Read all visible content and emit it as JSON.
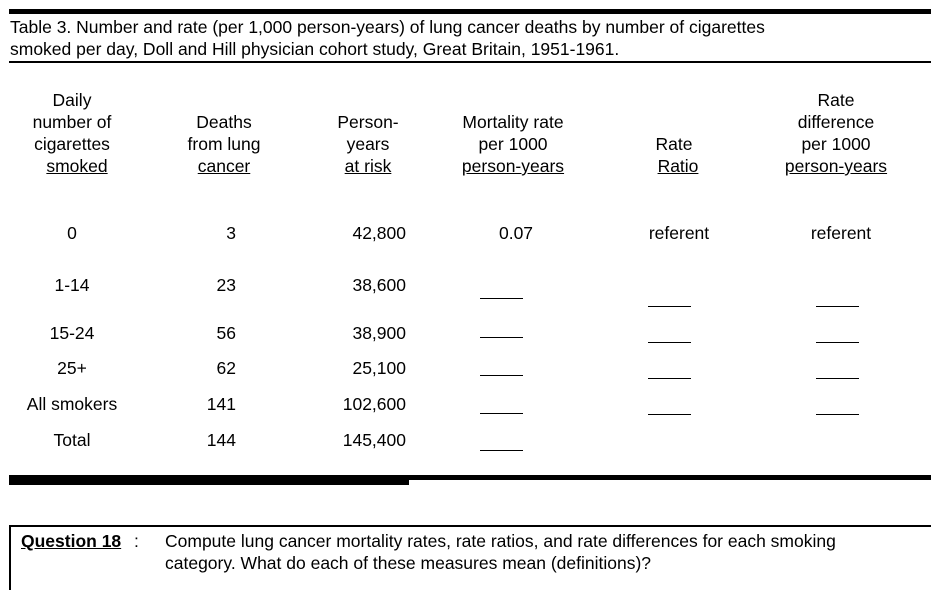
{
  "caption": {
    "line1": "Table 3.  Number and rate (per 1,000 person-years) of lung cancer deaths by number of cigarettes",
    "line2": "smoked per day, Doll and Hill physician cohort study, Great Britain, 1951-1961."
  },
  "headers": {
    "daily": [
      "Daily",
      "number of",
      "cigarettes",
      "smoked"
    ],
    "deaths": [
      "Deaths",
      "from lung",
      "cancer"
    ],
    "person": [
      "Person-",
      "years",
      "at risk"
    ],
    "mortality": [
      "Mortality rate",
      "per 1000",
      "person-years"
    ],
    "ratio": [
      "Rate",
      "Ratio"
    ],
    "diff": [
      "Rate",
      "difference",
      "per 1000",
      "person-years"
    ]
  },
  "rows": [
    {
      "category": "0",
      "deaths": "3",
      "person_years": "42,800",
      "rate": "0.07",
      "ratio": "referent",
      "difference": "referent"
    },
    {
      "category": "1-14",
      "deaths": "23",
      "person_years": "38,600"
    },
    {
      "category": "15-24",
      "deaths": "56",
      "person_years": "38,900"
    },
    {
      "category": "25+",
      "deaths": "62",
      "person_years": "25,100"
    },
    {
      "category": "All smokers",
      "deaths": "141",
      "person_years": "102,600"
    },
    {
      "category": "Total",
      "deaths": "144",
      "person_years": "145,400"
    }
  ],
  "question": {
    "label": "Question 18",
    "colon": ":",
    "line1": "Compute lung cancer mortality rates, rate ratios, and rate differences for each smoking",
    "line2": "category. What do each of these measures mean (definitions)?"
  }
}
